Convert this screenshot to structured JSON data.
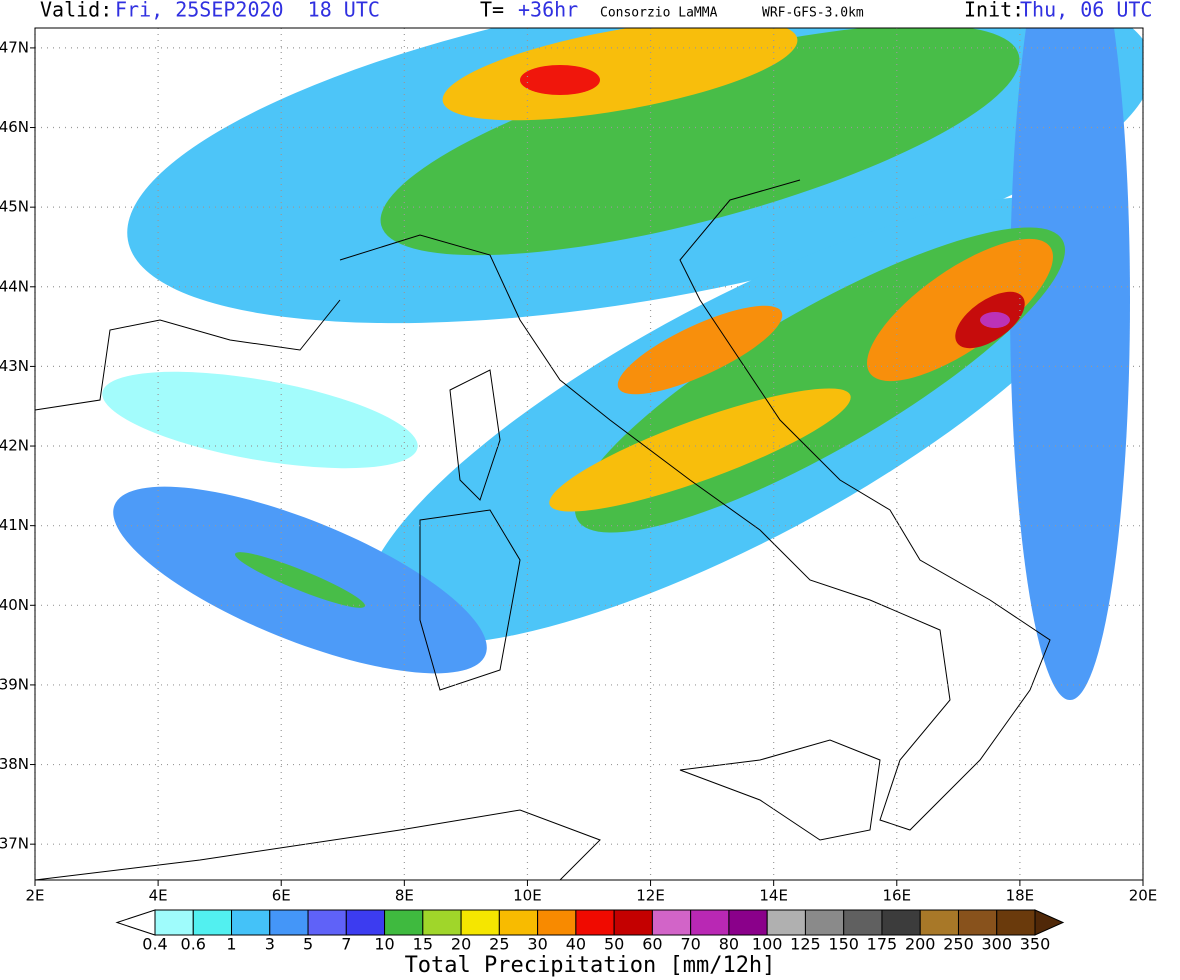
{
  "header": {
    "valid_label": "Valid:",
    "valid_time": "Fri, 25SEP2020  18 UTC",
    "lead_label": "T=",
    "lead_time": "+36hr",
    "source": "Consorzio LaMMA",
    "model": "WRF-GFS-3.0km",
    "init_label": "Init:",
    "init_time": "Thu, 06 UTC"
  },
  "map": {
    "xlim": [
      2,
      20
    ],
    "ylim": [
      36.55,
      47.25
    ],
    "xticks": [
      {
        "value": 2,
        "label": "2E"
      },
      {
        "value": 4,
        "label": "4E"
      },
      {
        "value": 6,
        "label": "6E"
      },
      {
        "value": 8,
        "label": "8E"
      },
      {
        "value": 10,
        "label": "10E"
      },
      {
        "value": 12,
        "label": "12E"
      },
      {
        "value": 14,
        "label": "14E"
      },
      {
        "value": 16,
        "label": "16E"
      },
      {
        "value": 18,
        "label": "18E"
      },
      {
        "value": 20,
        "label": "20E"
      }
    ],
    "yticks": [
      {
        "value": 37,
        "label": "37N"
      },
      {
        "value": 38,
        "label": "38N"
      },
      {
        "value": 39,
        "label": "39N"
      },
      {
        "value": 40,
        "label": "40N"
      },
      {
        "value": 41,
        "label": "41N"
      },
      {
        "value": 42,
        "label": "42N"
      },
      {
        "value": 43,
        "label": "43N"
      },
      {
        "value": 44,
        "label": "44N"
      },
      {
        "value": 45,
        "label": "45N"
      },
      {
        "value": 46,
        "label": "46N"
      },
      {
        "value": 47,
        "label": "47N"
      }
    ],
    "grid": true
  },
  "colorbar": {
    "title": "Total Precipitation [mm/12h]",
    "levels": [
      0.4,
      0.6,
      1,
      3,
      5,
      7,
      10,
      15,
      20,
      25,
      30,
      40,
      50,
      60,
      70,
      80,
      100,
      125,
      150,
      175,
      200,
      250,
      300,
      350
    ],
    "colors": [
      "#ffffff",
      "#9ffcfc",
      "#52f0f0",
      "#44c2f8",
      "#4496f8",
      "#5f62f8",
      "#3c3cf0",
      "#3fba3f",
      "#a0d62a",
      "#f5e600",
      "#f8bb00",
      "#f88a00",
      "#f00a00",
      "#c40000",
      "#d264c8",
      "#b928b4",
      "#8a008a",
      "#b0b0b0",
      "#8a8a8a",
      "#606060",
      "#3c3c3c",
      "#a87828",
      "#88521c",
      "#6a3a0c",
      "#502808"
    ]
  }
}
